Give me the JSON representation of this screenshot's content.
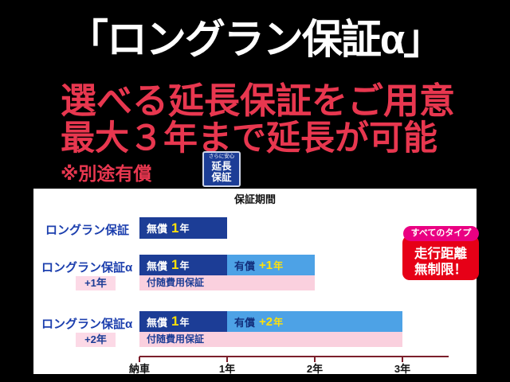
{
  "header": {
    "title": "「ロングラン保証α」",
    "subtitle1": "選べる延長保証をご用意",
    "subtitle2": "最大３年まで延長が可能",
    "note": "※別途有償",
    "stamp": {
      "top": "さらに安心",
      "line1": "延長",
      "line2": "保証"
    }
  },
  "chart": {
    "title": "保証期間",
    "rows": [
      {
        "label": "ロングラン保証",
        "free_label": "無償",
        "free_num": "1",
        "free_unit": "年"
      },
      {
        "label": "ロングラン保証α",
        "plus": "+1年",
        "free_label": "無償",
        "free_num": "1",
        "free_unit": "年",
        "paid_label": "有償",
        "paid_num": "+1",
        "paid_unit": "年",
        "sub_bar": "付随費用保証"
      },
      {
        "label": "ロングラン保証α",
        "plus": "+2年",
        "free_label": "無償",
        "free_num": "1",
        "free_unit": "年",
        "paid_label": "有償",
        "paid_num": "+2",
        "paid_unit": "年",
        "sub_bar": "付随費用保証"
      }
    ],
    "axis": [
      "納車",
      "1年",
      "2年",
      "3年"
    ]
  },
  "badge": {
    "pill": "すべてのタイプ",
    "line1": "走行距離",
    "line2": "無制限！"
  },
  "colors": {
    "accent_red": "#e8374f",
    "bar_navy": "#1c3d96",
    "bar_light_blue": "#4da2e6",
    "bar_pink": "#fad0de",
    "highlight_yellow": "#ffe10a",
    "pill_magenta": "#ea0082",
    "badge_red": "#e60017",
    "axis_maroon": "#7b1f2b"
  },
  "chart_data": {
    "type": "bar",
    "orientation": "horizontal",
    "title": "保証期間",
    "x_ticks": [
      "納車",
      "1年",
      "2年",
      "3年"
    ],
    "x_range": [
      0,
      3
    ],
    "x_unit": "year",
    "grid": false,
    "series": [
      {
        "name": "ロングラン保証",
        "segments": [
          {
            "label": "無償 1年",
            "start": 0,
            "end": 1,
            "color": "#1c3d96"
          }
        ]
      },
      {
        "name": "ロングラン保証α +1年",
        "segments": [
          {
            "label": "無償 1年",
            "start": 0,
            "end": 1,
            "color": "#1c3d96"
          },
          {
            "label": "有償 +1年",
            "start": 1,
            "end": 2,
            "color": "#4da2e6"
          }
        ],
        "sub_bar": {
          "label": "付随費用保証",
          "start": 0,
          "end": 2,
          "color": "#fad0de"
        }
      },
      {
        "name": "ロングラン保証α +2年",
        "segments": [
          {
            "label": "無償 1年",
            "start": 0,
            "end": 1,
            "color": "#1c3d96"
          },
          {
            "label": "有償 +2年",
            "start": 1,
            "end": 3,
            "color": "#4da2e6"
          }
        ],
        "sub_bar": {
          "label": "付随費用保証",
          "start": 0,
          "end": 3,
          "color": "#fad0de"
        }
      }
    ],
    "annotations": [
      "すべてのタイプ",
      "走行距離無制限！",
      "※別途有償",
      "最大3年まで延長が可能"
    ]
  }
}
